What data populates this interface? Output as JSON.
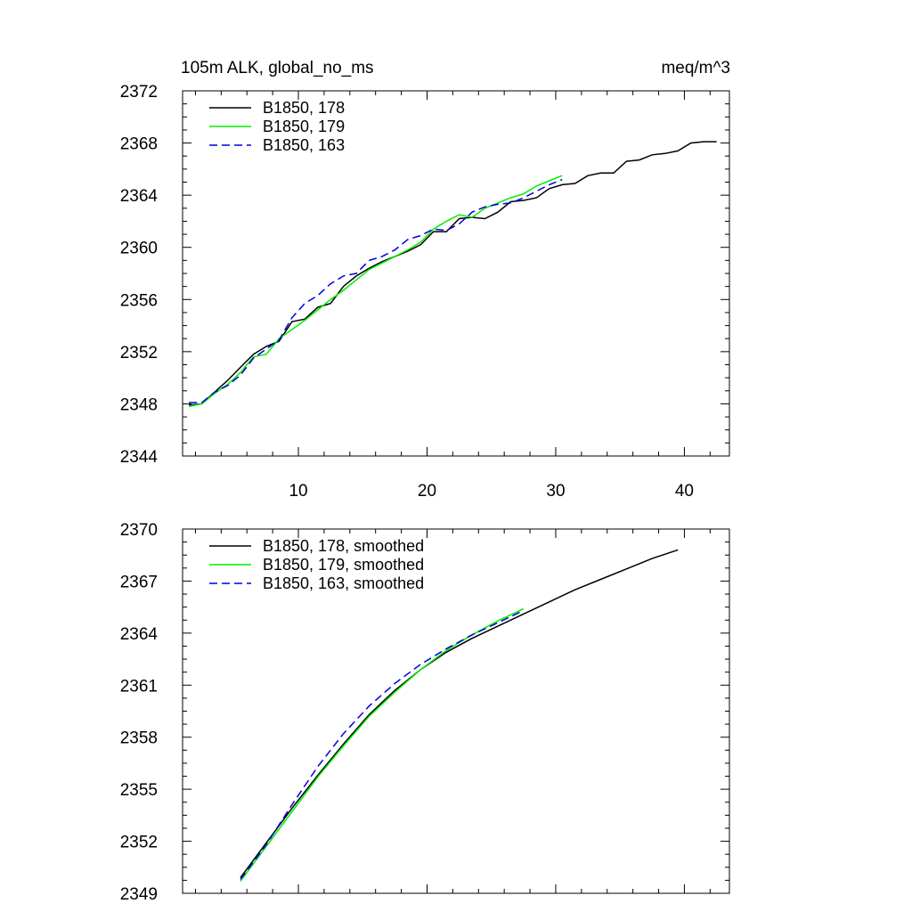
{
  "colors": {
    "run178": "#000000",
    "run179": "#00ee00",
    "run163": "#0000dd"
  },
  "chart_data": [
    {
      "type": "line",
      "title_left": "105m ALK, global_no_ms",
      "title_right": "meq/m^3",
      "xlabel": "",
      "ylabel": "",
      "xlim": [
        1,
        43.5
      ],
      "ylim": [
        2344,
        2372
      ],
      "xticks": [
        10,
        20,
        30,
        40
      ],
      "yticks": [
        2344,
        2348,
        2352,
        2356,
        2360,
        2364,
        2368,
        2372
      ],
      "legend_position": "top-left",
      "series": [
        {
          "name": "B1850, 178",
          "style": "solid",
          "color": "#000000",
          "x": [
            1.5,
            2.5,
            3.5,
            4.5,
            5.5,
            6.5,
            7.5,
            8.5,
            9.5,
            10.5,
            11.5,
            12.5,
            13.5,
            14.5,
            15.5,
            16.5,
            17.5,
            18.5,
            19.5,
            20.5,
            21.5,
            22.5,
            23.5,
            24.5,
            25.5,
            26.5,
            27.5,
            28.5,
            29.5,
            30.5,
            31.5,
            32.5,
            33.5,
            34.5,
            35.5,
            36.5,
            37.5,
            38.5,
            39.5,
            40.5,
            41.5,
            42.5
          ],
          "y": [
            2347.9,
            2348.0,
            2348.9,
            2349.8,
            2350.8,
            2351.8,
            2352.4,
            2352.8,
            2354.3,
            2354.5,
            2355.4,
            2355.7,
            2357.0,
            2357.8,
            2358.4,
            2358.9,
            2359.3,
            2359.7,
            2360.2,
            2361.2,
            2361.2,
            2362.2,
            2362.3,
            2362.2,
            2362.7,
            2363.5,
            2363.6,
            2363.8,
            2364.5,
            2364.8,
            2364.9,
            2365.5,
            2365.7,
            2365.7,
            2366.6,
            2366.7,
            2367.1,
            2367.2,
            2367.4,
            2368.0,
            2368.1,
            2368.1
          ]
        },
        {
          "name": "B1850, 179",
          "style": "solid",
          "color": "#00ee00",
          "x": [
            1.5,
            2.5,
            3.5,
            4.5,
            5.5,
            6.5,
            7.5,
            8.5,
            9.5,
            10.5,
            11.5,
            12.5,
            13.5,
            14.5,
            15.5,
            16.5,
            17.5,
            18.5,
            19.5,
            20.5,
            21.5,
            22.5,
            23.5,
            24.5,
            25.5,
            26.5,
            27.5,
            28.5,
            29.5,
            30.5
          ],
          "y": [
            2347.8,
            2348.0,
            2348.8,
            2349.5,
            2350.4,
            2351.6,
            2351.8,
            2353.0,
            2353.7,
            2354.4,
            2355.2,
            2356.0,
            2356.7,
            2357.5,
            2358.3,
            2358.8,
            2359.3,
            2359.8,
            2360.4,
            2361.4,
            2362.0,
            2362.5,
            2362.3,
            2363.0,
            2363.4,
            2363.8,
            2364.1,
            2364.7,
            2365.1,
            2365.5
          ]
        },
        {
          "name": "B1850, 163",
          "style": "dashed",
          "color": "#0000dd",
          "x": [
            1.5,
            2.5,
            3.5,
            4.5,
            5.5,
            6.5,
            7.5,
            8.5,
            9.5,
            10.5,
            11.5,
            12.5,
            13.5,
            14.5,
            15.5,
            16.5,
            17.5,
            18.5,
            19.5,
            20.5,
            21.5,
            22.5,
            23.5,
            24.5,
            25.5,
            26.5,
            27.5,
            28.5,
            29.5,
            30.5
          ],
          "y": [
            2348.1,
            2348.1,
            2348.9,
            2349.4,
            2350.2,
            2351.5,
            2352.2,
            2352.9,
            2354.6,
            2355.7,
            2356.3,
            2357.2,
            2357.8,
            2358.0,
            2359.0,
            2359.3,
            2359.8,
            2360.6,
            2360.9,
            2361.4,
            2361.3,
            2361.8,
            2362.7,
            2363.1,
            2363.3,
            2363.4,
            2363.8,
            2364.3,
            2364.8,
            2365.2
          ]
        }
      ]
    },
    {
      "type": "line",
      "title_left": "",
      "title_right": "",
      "xlabel": "",
      "ylabel": "",
      "xlim": [
        1,
        43.5
      ],
      "ylim": [
        2349,
        2370
      ],
      "xticks": [
        10,
        20,
        30,
        40
      ],
      "yticks": [
        2349,
        2352,
        2355,
        2358,
        2361,
        2364,
        2367,
        2370
      ],
      "legend_position": "top-left",
      "series": [
        {
          "name": "B1850, 178, smoothed",
          "style": "solid",
          "color": "#000000",
          "x": [
            5.5,
            7.5,
            9.5,
            11.5,
            13.5,
            15.5,
            17.5,
            19.5,
            21.5,
            23.5,
            25.5,
            27.5,
            29.5,
            31.5,
            33.5,
            35.5,
            37.5,
            39.5
          ],
          "y": [
            2349.9,
            2351.9,
            2353.9,
            2355.8,
            2357.6,
            2359.3,
            2360.7,
            2361.9,
            2362.9,
            2363.7,
            2364.4,
            2365.1,
            2365.8,
            2366.5,
            2367.1,
            2367.7,
            2368.3,
            2368.8
          ]
        },
        {
          "name": "B1850, 179, smoothed",
          "style": "solid",
          "color": "#00ee00",
          "x": [
            5.5,
            7.5,
            9.5,
            11.5,
            13.5,
            15.5,
            17.5,
            19.5,
            21.5,
            23.5,
            25.5,
            27.5
          ],
          "y": [
            2349.7,
            2351.7,
            2353.7,
            2355.7,
            2357.5,
            2359.2,
            2360.6,
            2361.9,
            2363.0,
            2363.9,
            2364.7,
            2365.4
          ]
        },
        {
          "name": "B1850, 163, smoothed",
          "style": "dashed",
          "color": "#0000dd",
          "x": [
            5.5,
            7.5,
            9.5,
            11.5,
            13.5,
            15.5,
            17.5,
            19.5,
            21.5,
            23.5,
            25.5,
            27.5
          ],
          "y": [
            2349.8,
            2351.8,
            2354.1,
            2356.3,
            2358.2,
            2359.8,
            2361.1,
            2362.2,
            2363.1,
            2363.9,
            2364.6,
            2365.3
          ]
        }
      ]
    }
  ]
}
